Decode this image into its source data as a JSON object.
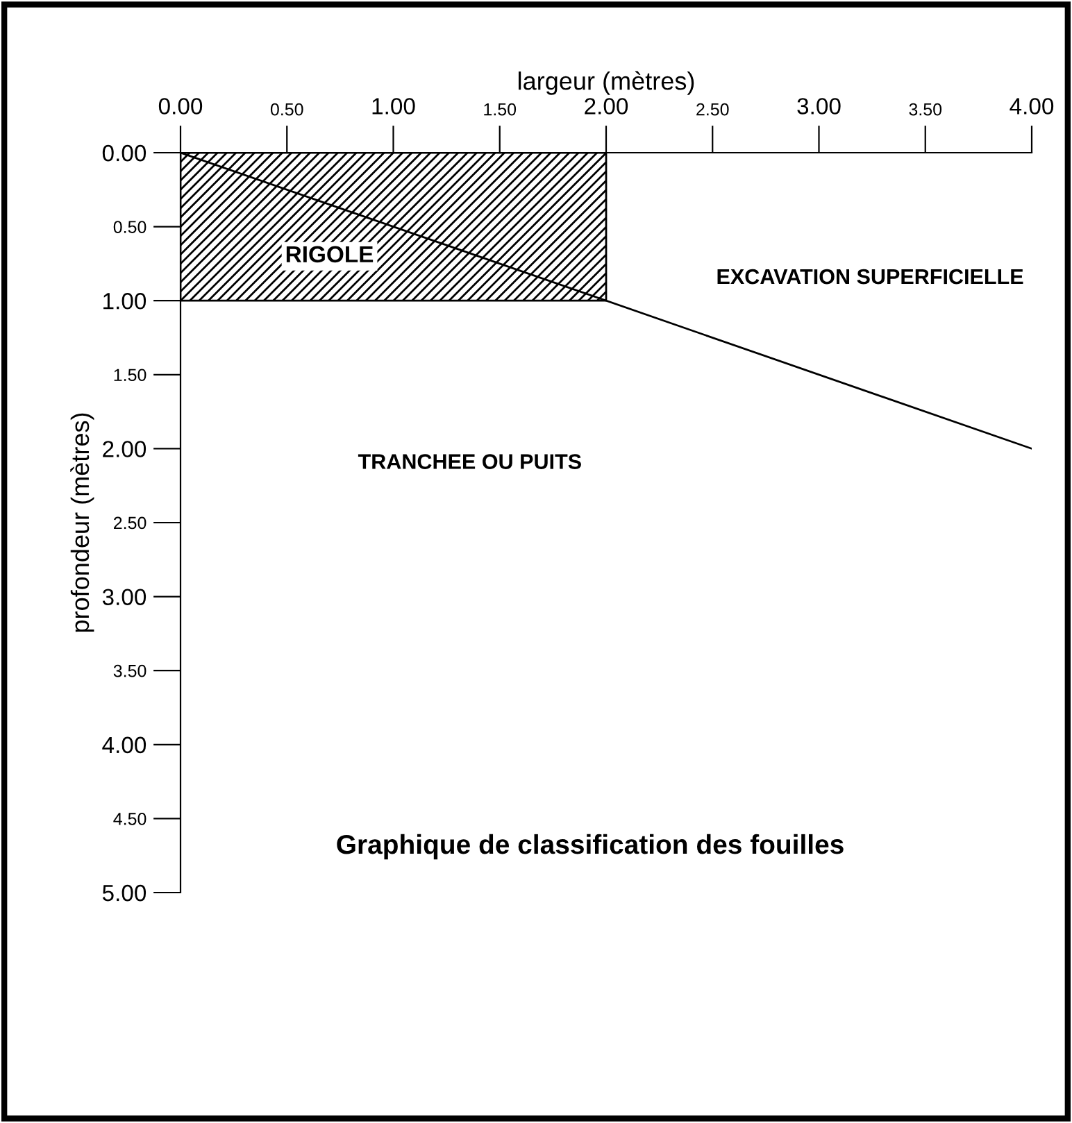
{
  "chart_data": {
    "type": "line",
    "title": "Graphique de classification des fouilles",
    "xlabel": "largeur (mètres)",
    "ylabel": "profondeur (mètres)",
    "xlim": [
      0,
      4
    ],
    "ylim": [
      5,
      0
    ],
    "xticks": [
      {
        "value": 0,
        "label": "0.00"
      },
      {
        "value": 0.5,
        "label": "0.50"
      },
      {
        "value": 1,
        "label": "1.00"
      },
      {
        "value": 1.5,
        "label": "1.50"
      },
      {
        "value": 2,
        "label": "2.00"
      },
      {
        "value": 2.5,
        "label": "2.50"
      },
      {
        "value": 3,
        "label": "3.00"
      },
      {
        "value": 3.5,
        "label": "3.50"
      },
      {
        "value": 4,
        "label": "4.00"
      }
    ],
    "yticks": [
      {
        "value": 0,
        "label": "0.00"
      },
      {
        "value": 0.5,
        "label": "0.50"
      },
      {
        "value": 1,
        "label": "1.00"
      },
      {
        "value": 1.5,
        "label": "1.50"
      },
      {
        "value": 2,
        "label": "2.00"
      },
      {
        "value": 2.5,
        "label": "2.50"
      },
      {
        "value": 3,
        "label": "3.00"
      },
      {
        "value": 3.5,
        "label": "3.50"
      },
      {
        "value": 4,
        "label": "4.00"
      },
      {
        "value": 4.5,
        "label": "4.50"
      },
      {
        "value": 5,
        "label": "5.00"
      }
    ],
    "series": [
      {
        "type": "area",
        "name": "RIGOLE",
        "color": "#000000",
        "x": [
          0,
          2
        ],
        "values": [
          1,
          1
        ]
      },
      {
        "color": "#000000",
        "x": [
          0,
          4
        ],
        "values": [
          0,
          2
        ]
      }
    ],
    "annotations": [
      "EXCAVATION SUPERFICIELLE",
      "TRANCHEE OU PUITS"
    ],
    "grid": false,
    "legend": false,
    "marker": "none",
    "line_style": "solid"
  }
}
